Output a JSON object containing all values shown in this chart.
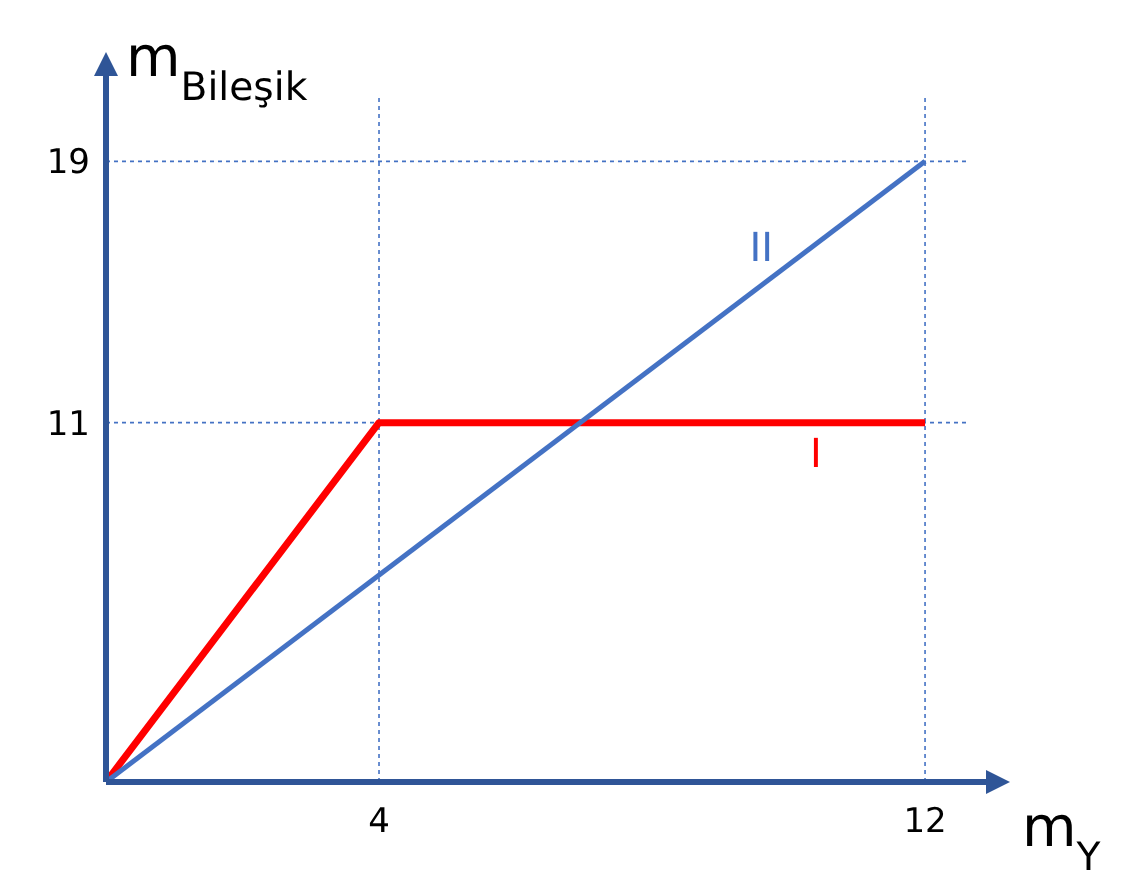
{
  "chart_data": {
    "type": "line",
    "xlabel": "m$_{Y}$",
    "ylabel": "m$_{Bileşik}$",
    "xlim": [
      0,
      12.6
    ],
    "ylim": [
      0,
      21
    ],
    "xticks": [
      4,
      12
    ],
    "yticks": [
      11,
      19
    ],
    "grid": true,
    "marker": "none",
    "series": [
      {
        "name": "I",
        "color": "#ff0000",
        "x": [
          0,
          4,
          12
        ],
        "values": [
          0,
          11,
          11
        ]
      },
      {
        "name": "II",
        "color": "#4472c4",
        "x": [
          0,
          12
        ],
        "values": [
          0,
          19
        ]
      }
    ]
  }
}
